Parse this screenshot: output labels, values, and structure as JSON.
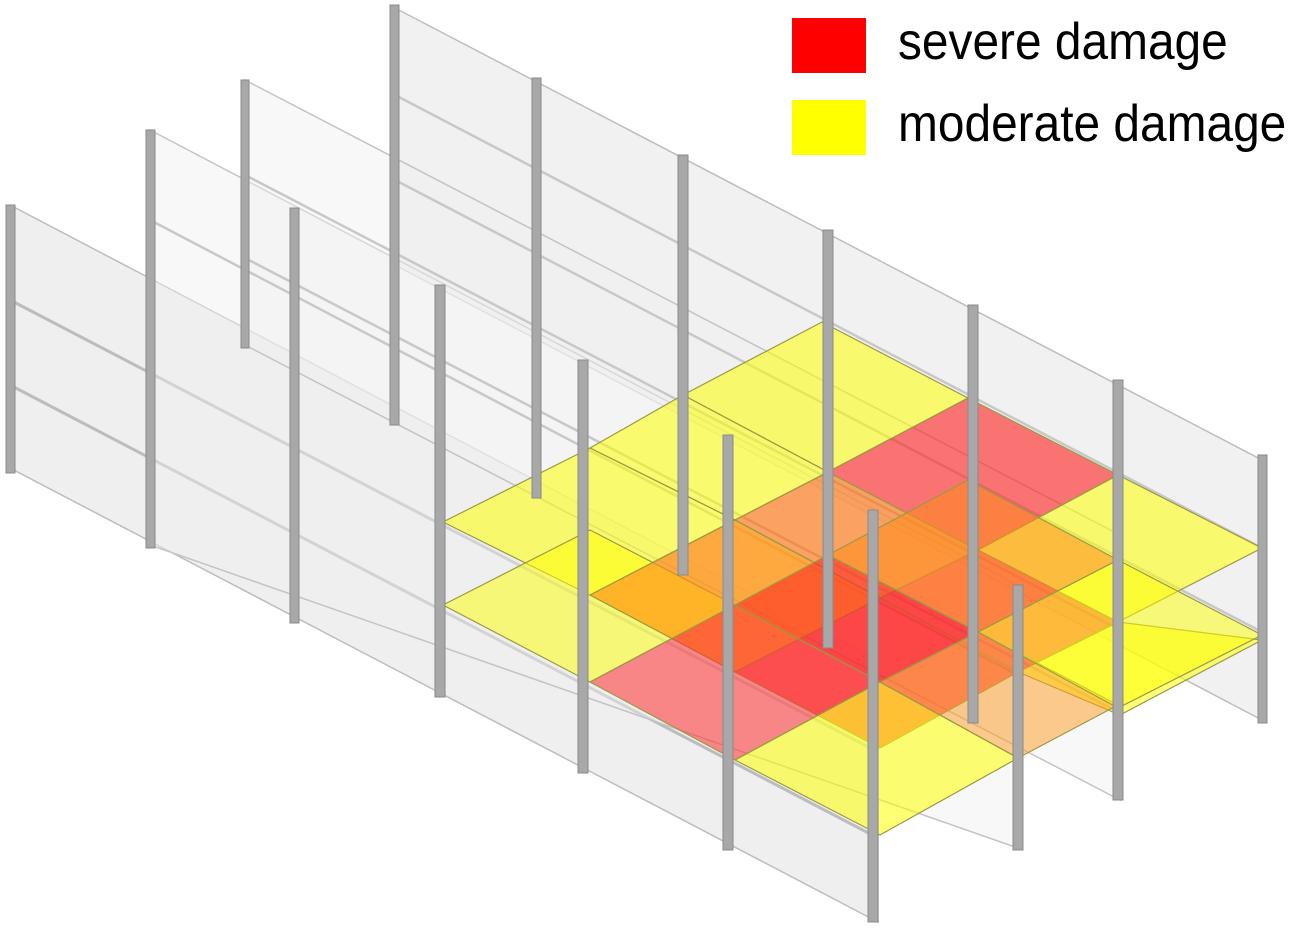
{
  "legend": {
    "items": [
      {
        "label": "severe damage",
        "color": "#ff0000"
      },
      {
        "label": "moderate damage",
        "color": "#ffff00"
      }
    ]
  },
  "colors": {
    "panel_fill": "#e4e4e4",
    "panel_stroke": "#b8b8b8",
    "column": "#9a9a9a",
    "severe": "#ff0000",
    "moderate": "#ffff00",
    "orange": "#ff8a1a"
  }
}
